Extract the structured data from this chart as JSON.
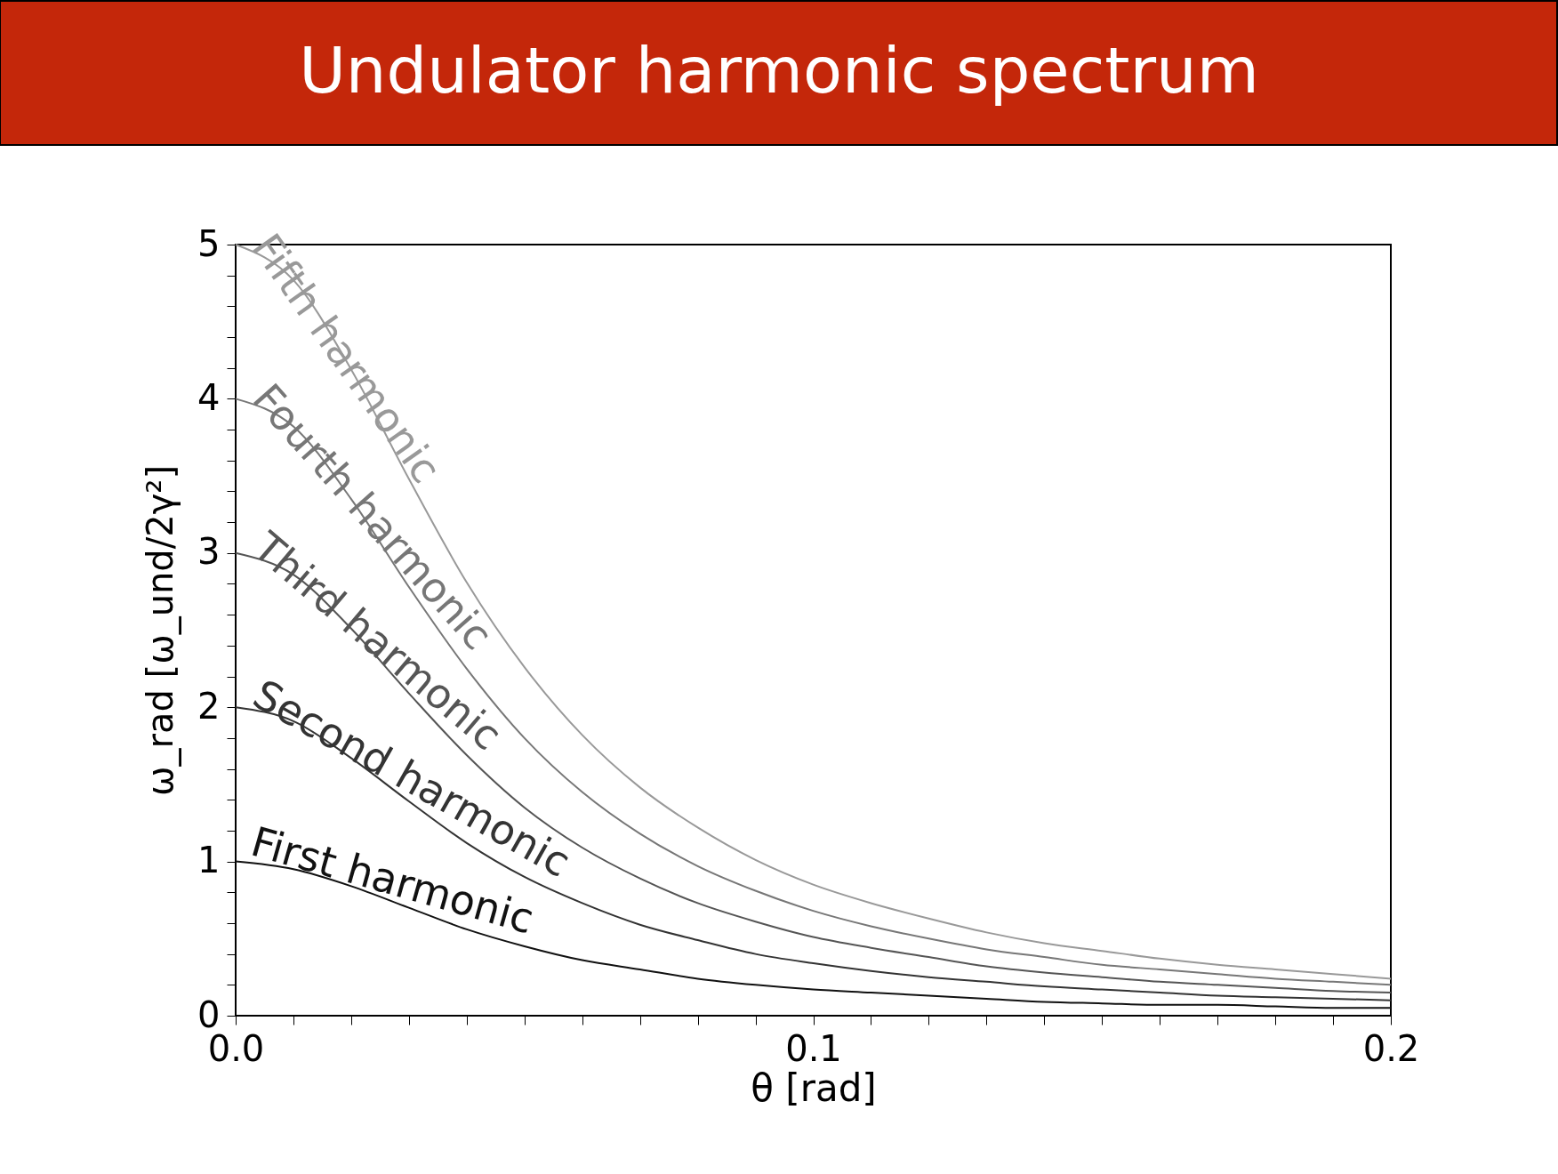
{
  "chart_data": {
    "type": "line",
    "title": "Undulator harmonic spectrum",
    "xlabel": "θ [rad]",
    "ylabel": "ω_rad [ω_und/2γ²]",
    "x": [
      0,
      0.01,
      0.02,
      0.03,
      0.04,
      0.05,
      0.06,
      0.07,
      0.08,
      0.09,
      0.1,
      0.11,
      0.12,
      0.13,
      0.14,
      0.15,
      0.16,
      0.17,
      0.18,
      0.19,
      0.2
    ],
    "series": [
      {
        "name": "First harmonic",
        "color": "#111111",
        "values": [
          1,
          0.95,
          0.84,
          0.7,
          0.56,
          0.45,
          0.36,
          0.3,
          0.24,
          0.2,
          0.17,
          0.15,
          0.13,
          0.11,
          0.09,
          0.08,
          0.07,
          0.07,
          0.06,
          0.05,
          0.05
        ]
      },
      {
        "name": "Second harmonic",
        "color": "#333333",
        "values": [
          2,
          1.91,
          1.67,
          1.39,
          1.12,
          0.9,
          0.73,
          0.59,
          0.49,
          0.4,
          0.34,
          0.29,
          0.25,
          0.22,
          0.19,
          0.17,
          0.15,
          0.13,
          0.12,
          0.11,
          0.1
        ]
      },
      {
        "name": "Third harmonic",
        "color": "#555555",
        "values": [
          3,
          2.86,
          2.51,
          2.09,
          1.69,
          1.35,
          1.09,
          0.89,
          0.73,
          0.61,
          0.51,
          0.44,
          0.38,
          0.32,
          0.28,
          0.25,
          0.22,
          0.2,
          0.18,
          0.16,
          0.15
        ]
      },
      {
        "name": "Fourth harmonic",
        "color": "#777777",
        "values": [
          4,
          3.82,
          3.35,
          2.78,
          2.25,
          1.8,
          1.45,
          1.18,
          0.97,
          0.81,
          0.68,
          0.58,
          0.5,
          0.43,
          0.38,
          0.33,
          0.3,
          0.27,
          0.24,
          0.22,
          0.2
        ]
      },
      {
        "name": "Fifth harmonic",
        "color": "#999999",
        "values": [
          5,
          4.77,
          4.19,
          3.48,
          2.81,
          2.26,
          1.82,
          1.48,
          1.22,
          1.01,
          0.85,
          0.73,
          0.63,
          0.54,
          0.47,
          0.42,
          0.37,
          0.33,
          0.3,
          0.27,
          0.24
        ]
      }
    ],
    "xlim": [
      0,
      0.2
    ],
    "xticks": [
      {
        "value": 0,
        "label": "0.0"
      },
      {
        "value": 0.01,
        "label": null
      },
      {
        "value": 0.02,
        "label": null
      },
      {
        "value": 0.03,
        "label": null
      },
      {
        "value": 0.04,
        "label": null
      },
      {
        "value": 0.05,
        "label": null
      },
      {
        "value": 0.06,
        "label": null
      },
      {
        "value": 0.07,
        "label": null
      },
      {
        "value": 0.08,
        "label": null
      },
      {
        "value": 0.09,
        "label": null
      },
      {
        "value": 0.1,
        "label": "0.1"
      },
      {
        "value": 0.11,
        "label": null
      },
      {
        "value": 0.12,
        "label": null
      },
      {
        "value": 0.13,
        "label": null
      },
      {
        "value": 0.14,
        "label": null
      },
      {
        "value": 0.15,
        "label": null
      },
      {
        "value": 0.16,
        "label": null
      },
      {
        "value": 0.17,
        "label": null
      },
      {
        "value": 0.18,
        "label": null
      },
      {
        "value": 0.19,
        "label": null
      },
      {
        "value": 0.2,
        "label": "0.2"
      }
    ],
    "ylim": [
      0,
      5
    ],
    "yticks": [
      0,
      {
        "value": 0.2,
        "label": null
      },
      {
        "value": 0.4,
        "label": null
      },
      {
        "value": 0.6,
        "label": null
      },
      {
        "value": 0.8,
        "label": null
      },
      1,
      {
        "value": 1.2,
        "label": null
      },
      {
        "value": 1.4,
        "label": null
      },
      {
        "value": 1.6,
        "label": null
      },
      {
        "value": 1.8,
        "label": null
      },
      2,
      {
        "value": 2.2,
        "label": null
      },
      {
        "value": 2.4,
        "label": null
      },
      {
        "value": 2.6,
        "label": null
      },
      {
        "value": 2.8,
        "label": null
      },
      3,
      {
        "value": 3.2,
        "label": null
      },
      {
        "value": 3.4,
        "label": null
      },
      {
        "value": 3.6,
        "label": null
      },
      {
        "value": 3.8,
        "label": null
      },
      4,
      {
        "value": 4.2,
        "label": null
      },
      {
        "value": 4.4,
        "label": null
      },
      {
        "value": 4.6,
        "label": null
      },
      {
        "value": 4.8,
        "label": null
      },
      5
    ],
    "grid": false,
    "legend": false,
    "marker": "none",
    "line_style": "solid"
  }
}
